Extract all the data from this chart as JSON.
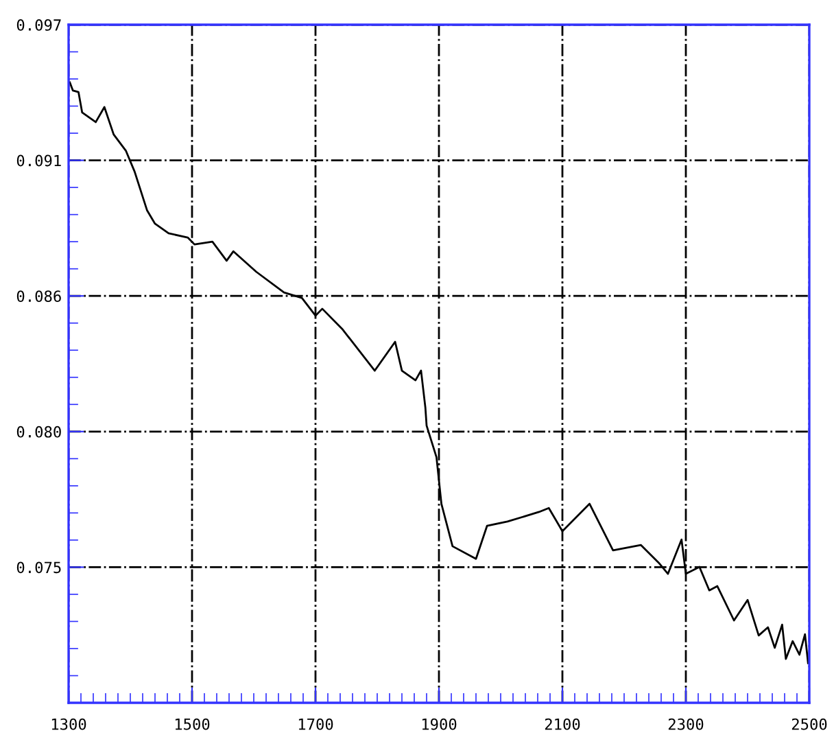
{
  "chart_data": {
    "type": "line",
    "x": [
      1302,
      1307,
      1316,
      1322,
      1344,
      1358,
      1373,
      1393,
      1407,
      1427,
      1440,
      1462,
      1493,
      1504,
      1533,
      1556,
      1567,
      1604,
      1649,
      1678,
      1700,
      1711,
      1744,
      1796,
      1829,
      1840,
      1862,
      1871,
      1878,
      1880,
      1896,
      1904,
      1922,
      1960,
      1978,
      2011,
      2062,
      2078,
      2100,
      2144,
      2182,
      2227,
      2256,
      2271,
      2293,
      2300,
      2322,
      2338,
      2351,
      2378,
      2400,
      2418,
      2433,
      2444,
      2456,
      2462,
      2473,
      2484,
      2493,
      2498
    ],
    "series": [
      {
        "color": "#000000",
        "values": [
          0.09466,
          0.09433,
          0.09427,
          0.09344,
          0.09305,
          0.09366,
          0.09255,
          0.09188,
          0.09104,
          0.08948,
          0.08893,
          0.08854,
          0.08837,
          0.08809,
          0.0882,
          0.08743,
          0.08781,
          0.08698,
          0.08614,
          0.08592,
          0.0852,
          0.08548,
          0.08464,
          0.08297,
          0.08414,
          0.08297,
          0.08258,
          0.08297,
          0.08147,
          0.08074,
          0.07946,
          0.07757,
          0.07585,
          0.07534,
          0.07668,
          0.07685,
          0.07724,
          0.0774,
          0.07646,
          0.07757,
          0.07568,
          0.0759,
          0.07518,
          0.07473,
          0.07612,
          0.07473,
          0.07501,
          0.07406,
          0.07423,
          0.07284,
          0.07367,
          0.07223,
          0.07256,
          0.07173,
          0.07267,
          0.07128,
          0.072,
          0.07145,
          0.07228,
          0.07111
        ]
      }
    ],
    "xlim": [
      1300,
      2500
    ],
    "xticks": [
      1300,
      1500,
      1700,
      1900,
      2100,
      2300,
      2500
    ],
    "ylim": [
      0.0695,
      0.097
    ],
    "yticks": [
      {
        "value": 0.097,
        "label": "0.097"
      },
      {
        "value": 0.0915,
        "label": "0.091"
      },
      {
        "value": 0.086,
        "label": "0.086"
      },
      {
        "value": 0.0805,
        "label": "0.080"
      },
      {
        "value": 0.075,
        "label": "0.075"
      }
    ],
    "grid": true,
    "marker": "none",
    "line_style": "solid",
    "legend": false
  }
}
